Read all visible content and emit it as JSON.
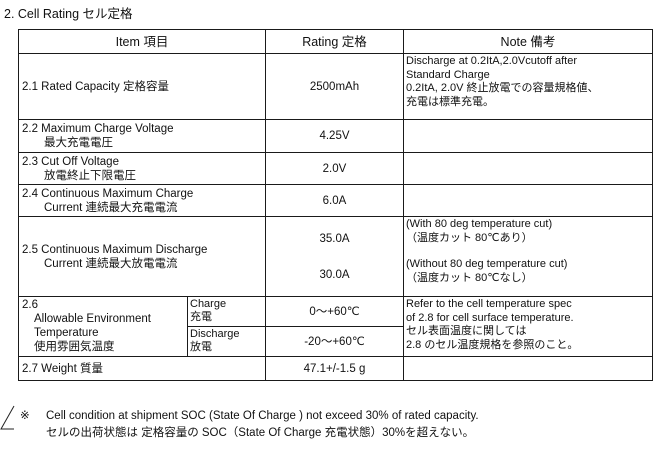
{
  "title": "2. Cell Rating セル定格",
  "headers": {
    "item": "Item  項目",
    "rating": "Rating  定格",
    "note": "Note  備考"
  },
  "rows": {
    "capacity": {
      "item": "2.1 Rated Capacity 定格容量",
      "rating": "2500mAh",
      "note": [
        "Discharge at 0.2ItA,2.0Vcutoff after",
        "Standard Charge",
        "0.2ItA, 2.0V 終止放電での容量規格値、",
        "充電は標準充電。"
      ]
    },
    "max_charge_voltage": {
      "item_en": "2.2 Maximum Charge Voltage",
      "item_ja": "最大充電電圧",
      "rating": "4.25V"
    },
    "cutoff_voltage": {
      "item_en": "2.3 Cut Off Voltage",
      "item_ja": "放電終止下限電圧",
      "rating": "2.0V"
    },
    "continuous_charge": {
      "item_en": "2.4 Continuous Maximum Charge",
      "item_ja": "Current  連続最大充電電流",
      "rating": "6.0A"
    },
    "continuous_discharge": {
      "item_en": "2.5 Continuous Maximum Discharge",
      "item_ja": "Current  連続最大放電電流",
      "rating_1": "35.0A",
      "rating_2": "30.0A",
      "note_1": [
        "(With 80 deg temperature cut)",
        "（温度カット 80℃あり）"
      ],
      "note_2": [
        "(Without 80 deg temperature cut)",
        "（温度カット 80℃なし）"
      ]
    },
    "environment": {
      "item_num": "2.6",
      "item_lines": [
        "Allowable Environment",
        "Temperature",
        "使用雰囲気温度"
      ],
      "charge_label": [
        "Charge",
        "充電"
      ],
      "discharge_label": [
        "Discharge",
        "放電"
      ],
      "charge_rating": "0～+60℃",
      "discharge_rating": "-20～+60℃",
      "note": [
        "Refer to the cell temperature spec",
        "of 2.8 for cell surface temperature.",
        "セル表面温度に関しては",
        "2.8 のセル温度規格を参照のこと。"
      ]
    },
    "weight": {
      "item": "2.7 Weight 質量",
      "rating": "47.1+/-1.5 g"
    }
  },
  "footnote": {
    "mark": "※",
    "line1": "Cell condition at shipment SOC (State Of Charge ) not exceed 30% of rated capacity.",
    "line2": "セルの出荷状態は  定格容量の SOC（State Of Charge  充電状態）30%を超えない。"
  }
}
